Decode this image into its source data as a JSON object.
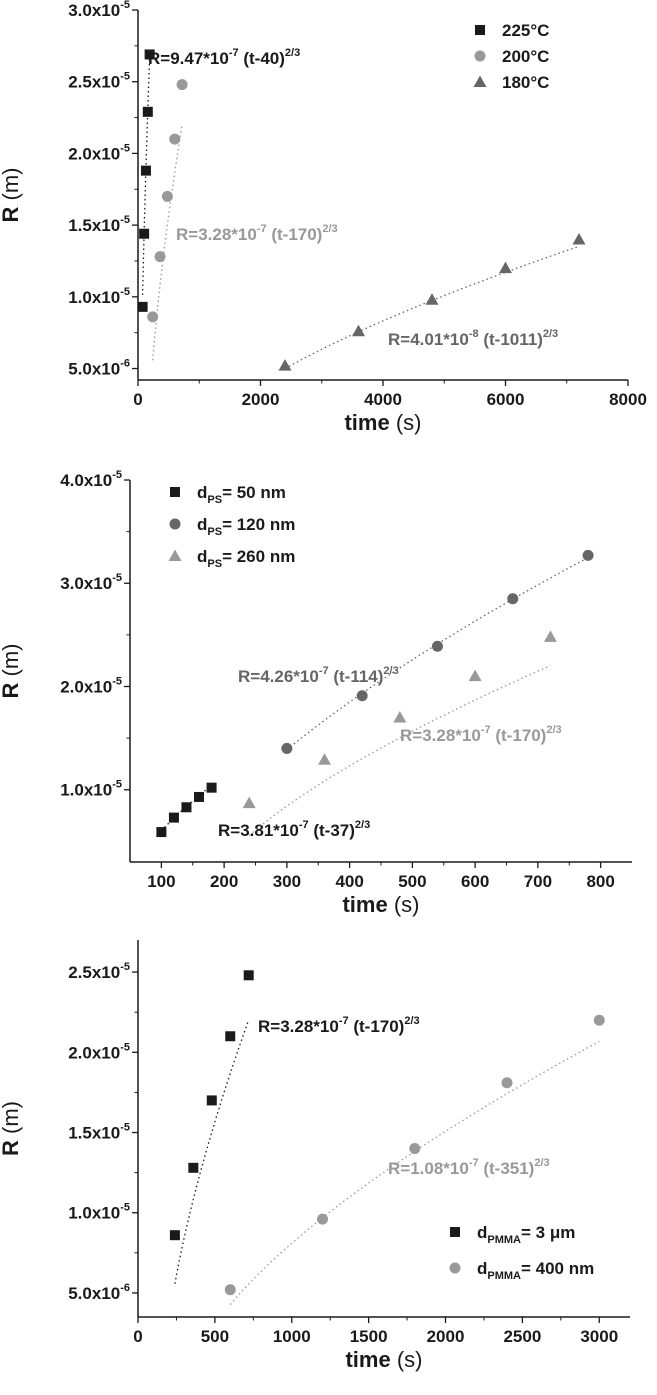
{
  "chart_data": [
    {
      "type": "scatter",
      "title": "",
      "xlabel_bold": "time",
      "xlabel_unit": "(s)",
      "ylabel_bold": "R",
      "ylabel_unit": "(m)",
      "xlim": [
        0,
        8000
      ],
      "ylim": [
        4.2e-06,
        3e-05
      ],
      "xticks": [
        0,
        2000,
        4000,
        6000,
        8000
      ],
      "yticks": [
        {
          "value": 5e-06,
          "mant": "5.0x10",
          "exp": "-6"
        },
        {
          "value": 1e-05,
          "mant": "1.0x10",
          "exp": "-5"
        },
        {
          "value": 1.5e-05,
          "mant": "1.5x10",
          "exp": "-5"
        },
        {
          "value": 2e-05,
          "mant": "2.0x10",
          "exp": "-5"
        },
        {
          "value": 2.5e-05,
          "mant": "2.5x10",
          "exp": "-5"
        },
        {
          "value": 3e-05,
          "mant": "3.0x10",
          "exp": "-5"
        }
      ],
      "legend_position": "top-right",
      "series": [
        {
          "name": "225°C",
          "marker": "square",
          "color": "#1a1a1a",
          "x": [
            75,
            100,
            130,
            160,
            190
          ],
          "y": [
            9.3e-06,
            1.44e-05,
            1.88e-05,
            2.29e-05,
            2.69e-05
          ],
          "fit": {
            "a": 9.47e-07,
            "t0": 40
          },
          "annotation": {
            "prefix": "R=9.47*10",
            "exp": "-7",
            "middle": " (t-40)",
            "power": "2/3"
          }
        },
        {
          "name": "200°C",
          "marker": "circle",
          "color": "#999999",
          "x": [
            240,
            360,
            480,
            600,
            720
          ],
          "y": [
            8.6e-06,
            1.28e-05,
            1.7e-05,
            2.1e-05,
            2.48e-05
          ],
          "fit": {
            "a": 3.28e-07,
            "t0": 170
          },
          "annotation": {
            "prefix": "R=3.28*10",
            "exp": "-7",
            "middle": " (t-170)",
            "power": "2/3"
          }
        },
        {
          "name": "180°C",
          "marker": "triangle",
          "color": "#666666",
          "x": [
            2400,
            3600,
            4800,
            6000,
            7200
          ],
          "y": [
            5.2e-06,
            7.6e-06,
            9.8e-06,
            1.2e-05,
            1.4e-05
          ],
          "fit": {
            "a": 4.01e-08,
            "t0": 1011
          },
          "annotation": {
            "prefix": "R=4.01*10",
            "exp": "-8",
            "middle": " (t-1011)",
            "power": "2/3"
          }
        }
      ]
    },
    {
      "type": "scatter",
      "title": "",
      "xlabel_bold": "time",
      "xlabel_unit": "(s)",
      "ylabel_bold": "R",
      "ylabel_unit": "(m)",
      "xlim": [
        50,
        850
      ],
      "ylim": [
        3e-06,
        4e-05
      ],
      "xticks": [
        100,
        200,
        300,
        400,
        500,
        600,
        700,
        800
      ],
      "yticks": [
        {
          "value": 1e-05,
          "mant": "1.0x10",
          "exp": "-5"
        },
        {
          "value": 2e-05,
          "mant": "2.0x10",
          "exp": "-5"
        },
        {
          "value": 3e-05,
          "mant": "3.0x10",
          "exp": "-5"
        },
        {
          "value": 4e-05,
          "mant": "4.0x10",
          "exp": "-5"
        }
      ],
      "legend_position": "top-left",
      "series": [
        {
          "name_main": "d",
          "name_sub": "PS",
          "name_rest": "= 50 nm",
          "marker": "square",
          "color": "#1a1a1a",
          "x": [
            100,
            120,
            140,
            160,
            180
          ],
          "y": [
            5.9e-06,
            7.3e-06,
            8.3e-06,
            9.3e-06,
            1.02e-05
          ],
          "fit": {
            "a": 3.81e-07,
            "t0": 37
          },
          "annotation": {
            "prefix": "R=3.81*10",
            "exp": "-7",
            "middle": " (t-37)",
            "power": "2/3"
          }
        },
        {
          "name_main": "d",
          "name_sub": "PS",
          "name_rest": "= 120 nm",
          "marker": "circle",
          "color": "#666666",
          "x": [
            300,
            420,
            540,
            660,
            780
          ],
          "y": [
            1.4e-05,
            1.91e-05,
            2.39e-05,
            2.85e-05,
            3.27e-05
          ],
          "fit": {
            "a": 4.26e-07,
            "t0": 114
          },
          "annotation": {
            "prefix": "R=4.26*10",
            "exp": "-7",
            "middle": " (t-114)",
            "power": "2/3"
          }
        },
        {
          "name_main": "d",
          "name_sub": "PS",
          "name_rest": "= 260 nm",
          "marker": "triangle",
          "color": "#999999",
          "x": [
            240,
            360,
            480,
            600,
            720
          ],
          "y": [
            8.7e-06,
            1.29e-05,
            1.7e-05,
            2.1e-05,
            2.48e-05
          ],
          "fit": {
            "a": 3.28e-07,
            "t0": 170
          },
          "annotation": {
            "prefix": "R=3.28*10",
            "exp": "-7",
            "middle": " (t-170)",
            "power": "2/3"
          }
        }
      ]
    },
    {
      "type": "scatter",
      "title": "",
      "xlabel_bold": "time",
      "xlabel_unit": "(s)",
      "ylabel_bold": "R",
      "ylabel_unit": "(m)",
      "xlim": [
        0,
        3200
      ],
      "ylim": [
        3.5e-06,
        2.7e-05
      ],
      "xticks": [
        0,
        500,
        1000,
        1500,
        2000,
        2500,
        3000
      ],
      "yticks": [
        {
          "value": 5e-06,
          "mant": "5.0x10",
          "exp": "-6"
        },
        {
          "value": 1e-05,
          "mant": "1.0x10",
          "exp": "-5"
        },
        {
          "value": 1.5e-05,
          "mant": "1.5x10",
          "exp": "-5"
        },
        {
          "value": 2e-05,
          "mant": "2.0x10",
          "exp": "-5"
        },
        {
          "value": 2.5e-05,
          "mant": "2.5x10",
          "exp": "-5"
        }
      ],
      "legend_position": "bottom-right",
      "series": [
        {
          "name_main": "d",
          "name_sub": "PMMA",
          "name_rest": "= 3 μm",
          "marker": "square",
          "color": "#1a1a1a",
          "x": [
            240,
            360,
            480,
            600,
            720
          ],
          "y": [
            8.6e-06,
            1.28e-05,
            1.7e-05,
            2.1e-05,
            2.48e-05
          ],
          "fit": {
            "a": 3.28e-07,
            "t0": 170
          },
          "annotation": {
            "prefix": "R=3.28*10",
            "exp": "-7",
            "middle": " (t-170)",
            "power": "2/3"
          }
        },
        {
          "name_main": "d",
          "name_sub": "PMMA",
          "name_rest": "= 400 nm",
          "marker": "circle",
          "color": "#999999",
          "x": [
            600,
            1200,
            1800,
            2400,
            3000
          ],
          "y": [
            5.2e-06,
            9.6e-06,
            1.4e-05,
            1.81e-05,
            2.2e-05
          ],
          "fit": {
            "a": 1.08e-07,
            "t0": 351
          },
          "annotation": {
            "prefix": "R=1.08*10",
            "exp": "-7",
            "middle": " (t-351)",
            "power": "2/3"
          }
        }
      ]
    }
  ]
}
